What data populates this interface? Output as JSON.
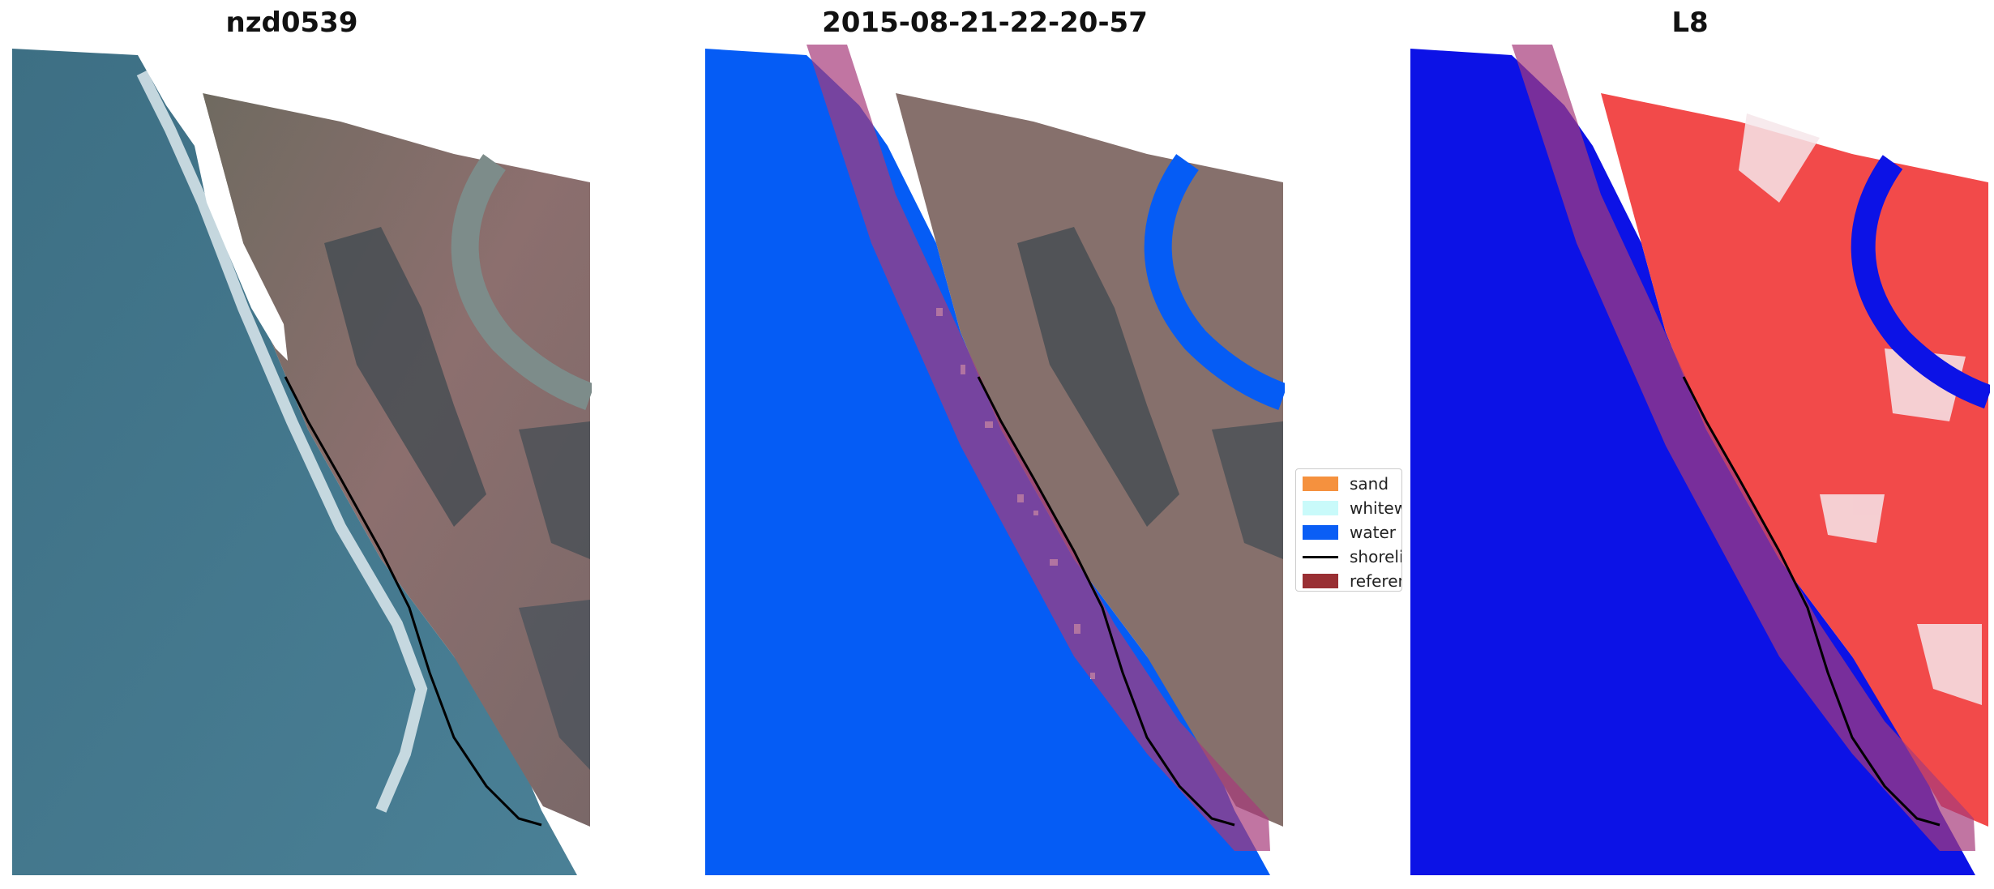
{
  "panels": [
    {
      "title": "nzd0539",
      "layer": "rgb-image"
    },
    {
      "title": "2015-08-21-22-20-57",
      "layer": "classified-image"
    },
    {
      "title": "L8",
      "layer": "index-image"
    }
  ],
  "legend": {
    "items": [
      {
        "label": "sand",
        "color": "#f5913e",
        "kind": "patch"
      },
      {
        "label": "whitewater",
        "color": "#c9fafa",
        "kind": "patch"
      },
      {
        "label": "water",
        "color": "#0a5ef5",
        "kind": "patch"
      },
      {
        "label": "shoreline",
        "color": "#000000",
        "kind": "line"
      },
      {
        "label": "reference",
        "color": "#992f33",
        "kind": "patch"
      }
    ]
  },
  "colors": {
    "ocean": "#3f6f86",
    "land": "#8a6f6f",
    "class_water": "#055cf5",
    "index_water": "#0c12e6",
    "index_land": "#f24a4a",
    "buffer": "#a63b7a"
  }
}
